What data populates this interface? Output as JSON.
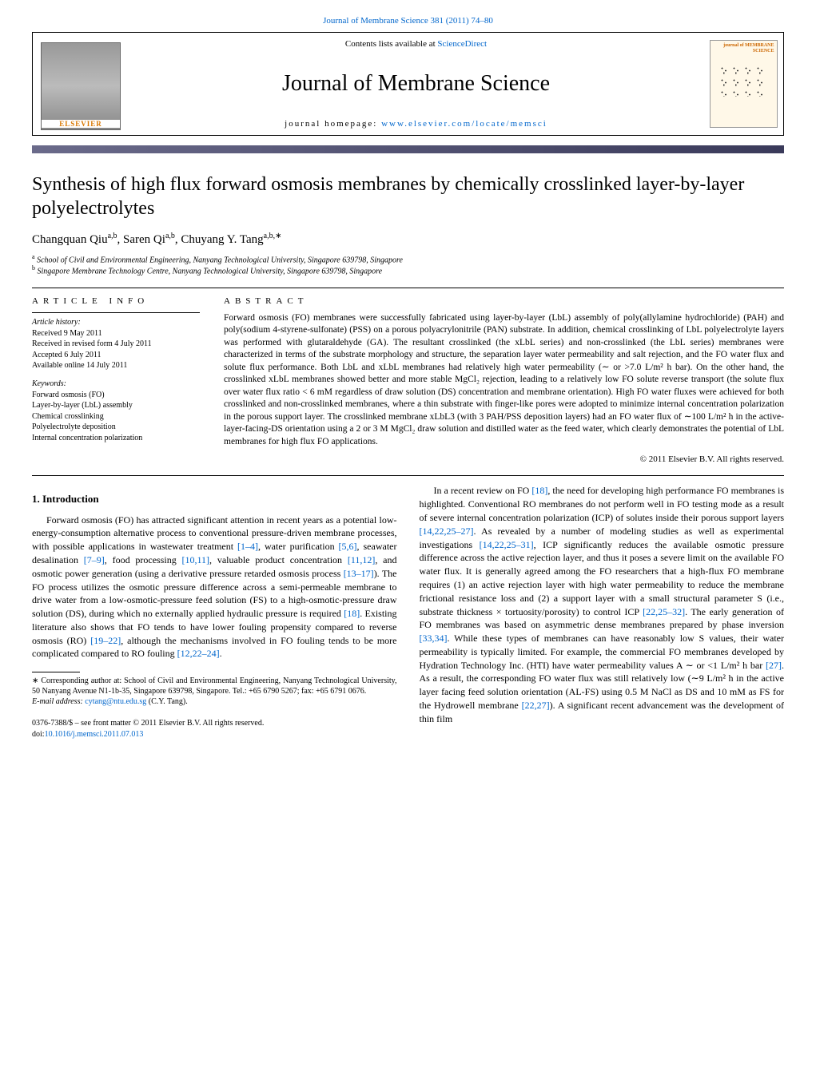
{
  "top_link": {
    "prefix": "",
    "text": "Journal of Membrane Science 381 (2011) 74–80"
  },
  "header": {
    "contents_prefix": "Contents lists available at ",
    "contents_link": "ScienceDirect",
    "journal_name": "Journal of Membrane Science",
    "homepage_prefix": "journal homepage: ",
    "homepage_link": "www.elsevier.com/locate/memsci",
    "elsevier_label": "ELSEVIER",
    "cover_title": "journal of MEMBRANE SCIENCE"
  },
  "title": "Synthesis of high flux forward osmosis membranes by chemically crosslinked layer-by-layer polyelectrolytes",
  "authors_html": "Changquan Qiu<sup>a,b</sup>, Saren Qi<sup>a,b</sup>, Chuyang Y. Tang<sup>a,b,∗</sup>",
  "affiliations": {
    "a": "School of Civil and Environmental Engineering, Nanyang Technological University, Singapore 639798, Singapore",
    "b": "Singapore Membrane Technology Centre, Nanyang Technological University, Singapore 639798, Singapore"
  },
  "article_info": {
    "heading": "article info",
    "history_title": "Article history:",
    "history": [
      "Received 9 May 2011",
      "Received in revised form 4 July 2011",
      "Accepted 6 July 2011",
      "Available online 14 July 2011"
    ],
    "keywords_title": "Keywords:",
    "keywords": [
      "Forward osmosis (FO)",
      "Layer-by-layer (LbL) assembly",
      "Chemical crosslinking",
      "Polyelectrolyte deposition",
      "Internal concentration polarization"
    ]
  },
  "abstract": {
    "heading": "abstract",
    "text": "Forward osmosis (FO) membranes were successfully fabricated using layer-by-layer (LbL) assembly of poly(allylamine hydrochloride) (PAH) and poly(sodium 4-styrene-sulfonate) (PSS) on a porous polyacrylonitrile (PAN) substrate. In addition, chemical crosslinking of LbL polyelectrolyte layers was performed with glutaraldehyde (GA). The resultant crosslinked (the xLbL series) and non-crosslinked (the LbL series) membranes were characterized in terms of the substrate morphology and structure, the separation layer water permeability and salt rejection, and the FO water flux and solute flux performance. Both LbL and xLbL membranes had relatively high water permeability (∼ or >7.0 L/m² h bar). On the other hand, the crosslinked xLbL membranes showed better and more stable MgCl₂ rejection, leading to a relatively low FO solute reverse transport (the solute flux over water flux ratio < 6 mM regardless of draw solution (DS) concentration and membrane orientation). High FO water fluxes were achieved for both crosslinked and non-crosslinked membranes, where a thin substrate with finger-like pores were adopted to minimize internal concentration polarization in the porous support layer. The crosslinked membrane xLbL3 (with 3 PAH/PSS deposition layers) had an FO water flux of ∼100 L/m² h in the active-layer-facing-DS orientation using a 2 or 3 M MgCl₂ draw solution and distilled water as the feed water, which clearly demonstrates the potential of LbL membranes for high flux FO applications.",
    "copyright": "© 2011 Elsevier B.V. All rights reserved."
  },
  "body": {
    "intro_heading": "1.  Introduction",
    "para1": "Forward osmosis (FO) has attracted significant attention in recent years as a potential low-energy-consumption alternative process to conventional pressure-driven membrane processes, with possible applications in wastewater treatment [1–4], water purification [5,6], seawater desalination [7–9], food processing [10,11], valuable product concentration [11,12], and osmotic power generation (using a derivative pressure retarded osmosis process [13–17]). The FO process utilizes the osmotic pressure difference across a semi-permeable membrane to drive water from a low-osmotic-pressure feed solution (FS) to a high-osmotic-pressure draw solution (DS), during which no externally applied hydraulic pressure is required [18]. Existing literature also shows that FO tends to have lower fouling propensity compared to reverse osmosis (RO) [19–22], although the mechanisms involved in FO fouling tends to be more complicated compared to RO fouling [12,22–24].",
    "para2": "In a recent review on FO [18], the need for developing high performance FO membranes is highlighted. Conventional RO membranes do not perform well in FO testing mode as a result of severe internal concentration polarization (ICP) of solutes inside their porous support layers [14,22,25–27]. As revealed by a number of modeling studies as well as experimental investigations [14,22,25–31], ICP significantly reduces the available osmotic pressure difference across the active rejection layer, and thus it poses a severe limit on the available FO water flux. It is generally agreed among the FO researchers that a high-flux FO membrane requires (1) an active rejection layer with high water permeability to reduce the membrane frictional resistance loss and (2) a support layer with a small structural parameter S (i.e., substrate thickness × tortuosity/porosity) to control ICP [22,25–32]. The early generation of FO membranes was based on asymmetric dense membranes prepared by phase inversion [33,34]. While these types of membranes can have reasonably low S values, their water permeability is typically limited. For example, the commercial FO membranes developed by Hydration Technology Inc. (HTI) have water permeability values A ∼ or <1 L/m² h bar [27]. As a result, the corresponding FO water flux was still relatively low (∼9 L/m² h in the active layer facing feed solution orientation (AL-FS) using 0.5 M NaCl as DS and 10 mM as FS for the Hydrowell membrane [22,27]). A significant recent advancement was the development of thin film"
  },
  "footnote": {
    "corr": "∗ Corresponding author at: School of Civil and Environmental Engineering, Nanyang Technological University, 50 Nanyang Avenue N1-1b-35, Singapore 639798, Singapore. Tel.: +65 6790 5267; fax: +65 6791 0676.",
    "email_label": "E-mail address: ",
    "email": "cytang@ntu.edu.sg",
    "email_suffix": " (C.Y. Tang)."
  },
  "bottom": {
    "issn": "0376-7388/$ – see front matter © 2011 Elsevier B.V. All rights reserved.",
    "doi_prefix": "doi:",
    "doi": "10.1016/j.memsci.2011.07.013"
  },
  "links": {
    "refs_color": "#0066cc"
  }
}
